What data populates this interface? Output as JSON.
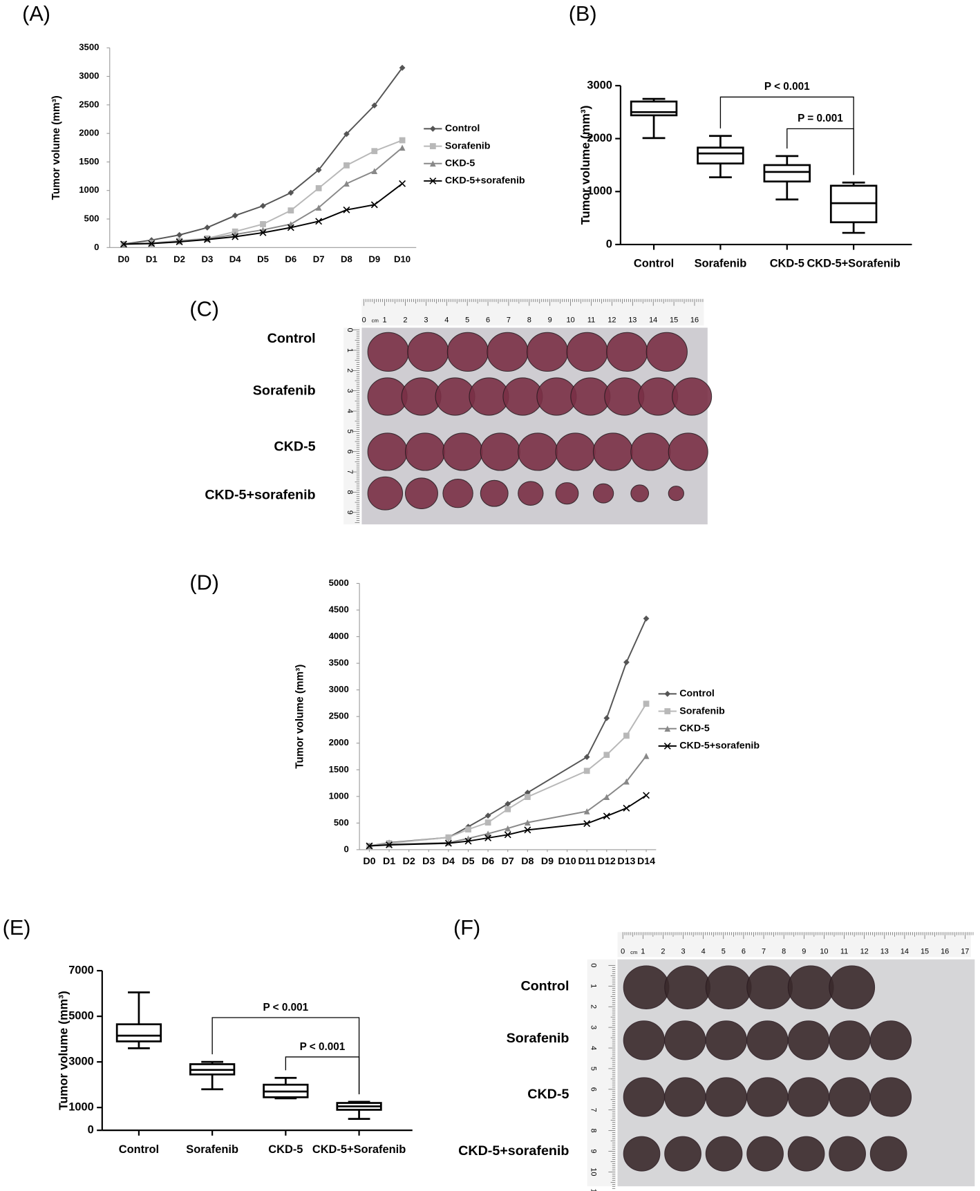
{
  "chart_data": [
    {
      "type": "line",
      "label": "(A)",
      "y_label": "Tumor volume (mm³)",
      "categories": [
        "D0",
        "D1",
        "D2",
        "D3",
        "D4",
        "D5",
        "D6",
        "D7",
        "D8",
        "D9",
        "D10"
      ],
      "ylim": [
        0,
        3500
      ],
      "yticks": [
        0,
        500,
        1000,
        1500,
        2000,
        2500,
        3000,
        3500
      ],
      "legend": "right",
      "series": [
        {
          "name": "Control",
          "color": "#555555",
          "marker": "diamond",
          "values": [
            60,
            130,
            220,
            350,
            560,
            730,
            960,
            1360,
            1990,
            2490,
            3150
          ]
        },
        {
          "name": "Sorafenib",
          "color": "#b8b8b8",
          "marker": "square",
          "values": [
            60,
            80,
            120,
            160,
            280,
            410,
            650,
            1040,
            1440,
            1690,
            1880
          ]
        },
        {
          "name": "CKD-5",
          "color": "#888888",
          "marker": "triangle",
          "values": [
            60,
            70,
            110,
            150,
            230,
            310,
            410,
            700,
            1120,
            1340,
            1750
          ]
        },
        {
          "name": "CKD-5+sorafenib",
          "color": "#000000",
          "marker": "x",
          "values": [
            60,
            70,
            100,
            140,
            190,
            260,
            350,
            460,
            660,
            750,
            1120
          ]
        }
      ]
    },
    {
      "type": "box",
      "label": "(B)",
      "y_label": "Tumor volume (mm³)",
      "categories": [
        "Control",
        "Sorafenib",
        "CKD-5",
        "CKD-5+Sorafenib"
      ],
      "ylim": [
        0,
        3000
      ],
      "yticks": [
        0,
        1000,
        2000,
        3000
      ],
      "boxes": [
        {
          "min": 2010,
          "q1": 2440,
          "median": 2500,
          "q3": 2700,
          "max": 2750
        },
        {
          "min": 1270,
          "q1": 1530,
          "median": 1720,
          "q3": 1830,
          "max": 2050
        },
        {
          "min": 850,
          "q1": 1190,
          "median": 1370,
          "q3": 1500,
          "max": 1670
        },
        {
          "min": 220,
          "q1": 420,
          "median": 780,
          "q3": 1110,
          "max": 1170
        }
      ],
      "annotations": [
        {
          "text": "P < 0.001",
          "from": 1,
          "to": 3
        },
        {
          "text": "P = 0.001",
          "from": 2,
          "to": 3
        }
      ]
    },
    {
      "type": "line",
      "label": "(D)",
      "y_label": "Tumor volume (mm³)",
      "x": [
        0,
        1,
        4,
        5,
        6,
        7,
        8,
        11,
        12,
        13,
        14
      ],
      "xlim": [
        -0.5,
        14.5
      ],
      "xticks": [
        {
          "value": 0,
          "label": "D0"
        },
        {
          "value": 1,
          "label": "D1"
        },
        {
          "value": 2,
          "label": "D2"
        },
        {
          "value": 3,
          "label": "D3"
        },
        {
          "value": 4,
          "label": "D4"
        },
        {
          "value": 5,
          "label": "D5"
        },
        {
          "value": 6,
          "label": "D6"
        },
        {
          "value": 7,
          "label": "D7"
        },
        {
          "value": 8,
          "label": "D8"
        },
        {
          "value": 9,
          "label": "D9"
        },
        {
          "value": 10,
          "label": "D10"
        },
        {
          "value": 11,
          "label": "D11"
        },
        {
          "value": 12,
          "label": "D12"
        },
        {
          "value": 13,
          "label": "D13"
        },
        {
          "value": 14,
          "label": "D14"
        }
      ],
      "ylim": [
        0,
        5000
      ],
      "yticks": [
        0,
        500,
        1000,
        1500,
        2000,
        2500,
        3000,
        3500,
        4000,
        4500,
        5000
      ],
      "legend": "right",
      "series": [
        {
          "name": "Control",
          "color": "#555555",
          "marker": "diamond",
          "values": [
            70,
            130,
            230,
            430,
            640,
            860,
            1070,
            1740,
            2470,
            3520,
            4340
          ]
        },
        {
          "name": "Sorafenib",
          "color": "#b8b8b8",
          "marker": "square",
          "values": [
            70,
            120,
            230,
            380,
            510,
            760,
            990,
            1480,
            1780,
            2140,
            2740
          ]
        },
        {
          "name": "CKD-5",
          "color": "#888888",
          "marker": "triangle",
          "values": [
            70,
            100,
            130,
            210,
            300,
            400,
            510,
            720,
            990,
            1280,
            1760
          ]
        },
        {
          "name": "CKD-5+sorafenib",
          "color": "#000000",
          "marker": "x",
          "values": [
            70,
            90,
            120,
            160,
            220,
            280,
            370,
            490,
            630,
            780,
            1020
          ]
        }
      ]
    },
    {
      "type": "box",
      "label": "(E)",
      "y_label": "Tumor volume (mm³)",
      "categories": [
        "Control",
        "Sorafenib",
        "CKD-5",
        "CKD-5+Sorafenib"
      ],
      "ylim": [
        0,
        7000
      ],
      "yticks": [
        0,
        1000,
        3000,
        5000,
        7000
      ],
      "boxes": [
        {
          "min": 3600,
          "q1": 3900,
          "median": 4150,
          "q3": 4650,
          "max": 6050
        },
        {
          "min": 1800,
          "q1": 2450,
          "median": 2650,
          "q3": 2900,
          "max": 3000
        },
        {
          "min": 1400,
          "q1": 1450,
          "median": 1700,
          "q3": 2000,
          "max": 2300
        },
        {
          "min": 500,
          "q1": 900,
          "median": 1050,
          "q3": 1200,
          "max": 1250
        }
      ],
      "annotations": [
        {
          "text": "P < 0.001",
          "from": 1,
          "to": 3
        },
        {
          "text": "P < 0.001",
          "from": 2,
          "to": 3
        }
      ]
    }
  ],
  "photo_panels": [
    {
      "label": "(C)",
      "rows": [
        "Control",
        "Sorafenib",
        "CKD-5",
        "CKD-5+sorafenib"
      ],
      "ruler_unit": "cm",
      "ruler_top": [
        0,
        1,
        2,
        3,
        4,
        5,
        6,
        7,
        8,
        9,
        10,
        11,
        12,
        13,
        14,
        15,
        16
      ],
      "ruler_side": [
        0,
        1,
        2,
        3,
        4,
        5,
        6,
        7,
        8,
        9
      ]
    },
    {
      "label": "(F)",
      "rows": [
        "Control",
        "Sorafenib",
        "CKD-5",
        "CKD-5+sorafenib"
      ],
      "ruler_unit": "cm",
      "ruler_top": [
        0,
        1,
        2,
        3,
        4,
        5,
        6,
        7,
        8,
        9,
        10,
        11,
        12,
        13,
        14,
        15,
        16,
        17
      ],
      "ruler_side": [
        0,
        1,
        2,
        3,
        4,
        5,
        6,
        7,
        8,
        9,
        10,
        11
      ]
    }
  ]
}
